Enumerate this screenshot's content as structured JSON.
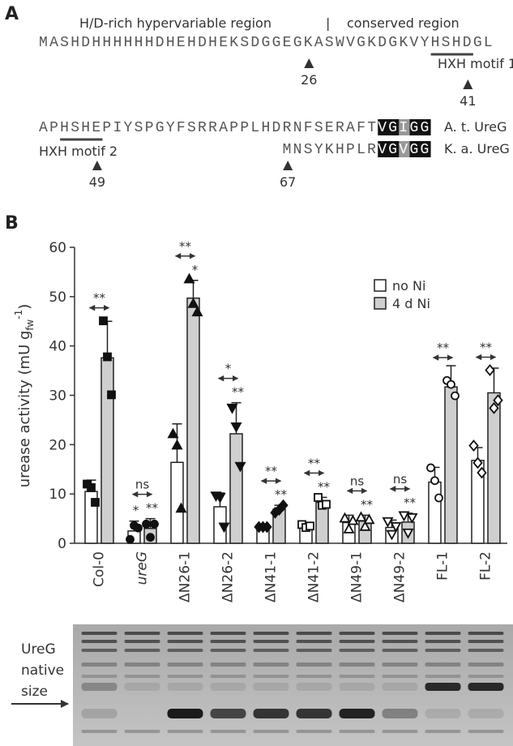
{
  "panel_a": {
    "label": "A",
    "region_left": "H/D-rich hypervariable region",
    "divider": "|",
    "region_right": "conserved region",
    "sequence1": [
      "MASHDHHHHHHDHEHDHEKSDGGEGKASWVGKDGKVY",
      "HSHD",
      "GL"
    ],
    "motif1": "HXH motif 1",
    "sequence2": [
      "AP",
      "HSHE",
      "PIYSPGYFSRRAPPLHDRNFSERAFT",
      "VG",
      "I",
      "GG"
    ],
    "species2": "A. t. UreG",
    "sequence3": [
      "MNSYKHPLR",
      "VG",
      "V",
      "GG"
    ],
    "species3": "K. a. UreG",
    "motif2": "HXH motif 2",
    "markers": [
      26,
      41,
      49,
      67
    ]
  },
  "chart_data": {
    "type": "bar",
    "panel_label": "B",
    "y_label": {
      "main": "urease activity (mU g",
      "sub": "fw",
      "sup": "-1",
      "end": ")"
    },
    "categories": [
      "Col-0",
      "ureG",
      "ΔN26-1",
      "ΔN26-2",
      "ΔN41-1",
      "ΔN41-2",
      "ΔN49-1",
      "ΔN49-2",
      "FL-1",
      "FL-2"
    ],
    "category_italic": [
      false,
      true,
      false,
      false,
      false,
      false,
      false,
      false,
      false,
      false
    ],
    "markers": [
      "square",
      "circle",
      "triangle-up",
      "triangle-down",
      "diamond",
      "square",
      "triangle-up",
      "triangle-down",
      "circle",
      "diamond"
    ],
    "marker_filled": [
      true,
      true,
      true,
      true,
      true,
      false,
      false,
      false,
      false,
      false
    ],
    "series": [
      {
        "name": "no Ni",
        "color": "#ffffff",
        "values": [
          10.5,
          2.5,
          16.4,
          7.4,
          3.3,
          3.5,
          4.2,
          3.2,
          12.4,
          16.8
        ],
        "errors": [
          2.3,
          2.0,
          7.8,
          2.8,
          0.3,
          0.6,
          1.5,
          1.5,
          3.0,
          2.6
        ],
        "points": [
          [
            12,
            11.3,
            8.3
          ],
          [
            0.8,
            3.6,
            3.1
          ],
          [
            22.2,
            19.9,
            7.1
          ],
          [
            9.6,
            9.3,
            3.3
          ],
          [
            3.3,
            3.3,
            3.3
          ],
          [
            3.8,
            3.2,
            3.5
          ],
          [
            5.1,
            2.9,
            4.6
          ],
          [
            4.4,
            1.8,
            3.4
          ],
          [
            15.3,
            12.7,
            9.2
          ],
          [
            19.8,
            16.3,
            14.3
          ]
        ],
        "labels": [
          null,
          "*",
          null,
          null,
          null,
          null,
          null,
          null,
          null,
          null
        ]
      },
      {
        "name": "4 d Ni",
        "color": "#cfcfcf",
        "values": [
          37.6,
          3.0,
          49.7,
          22.2,
          6.9,
          8.3,
          4.5,
          4.3,
          31.7,
          30.5
        ],
        "errors": [
          7.4,
          2.0,
          3.6,
          6.3,
          0.8,
          1.0,
          1.2,
          1.8,
          4.3,
          5.0
        ],
        "points": [
          [
            45.1,
            37.8,
            30.1
          ],
          [
            3.9,
            1.2,
            3.9
          ],
          [
            53.6,
            48.6,
            46.9
          ],
          [
            27.4,
            23.6,
            15.6
          ],
          [
            6.2,
            6.8,
            7.7
          ],
          [
            9.3,
            7.7,
            7.9
          ],
          [
            5.3,
            3.4,
            4.8
          ],
          [
            5.6,
            2.1,
            5.2
          ],
          [
            33.0,
            32.2,
            29.9
          ],
          [
            35.1,
            27.4,
            29.0
          ]
        ],
        "labels": [
          null,
          "**",
          "*",
          "**",
          "**",
          "**",
          "**",
          "**",
          null,
          null
        ]
      }
    ],
    "pair_labels": [
      "**",
      "ns",
      "**",
      "*",
      "**",
      "**",
      "ns",
      "ns",
      "**",
      "**"
    ],
    "ylim": [
      0,
      60
    ],
    "yticks": [
      0,
      10,
      20,
      30,
      40,
      50,
      60
    ],
    "legend": "upper right"
  },
  "gel": {
    "label_lines": [
      "UreG",
      "native",
      "size"
    ]
  }
}
